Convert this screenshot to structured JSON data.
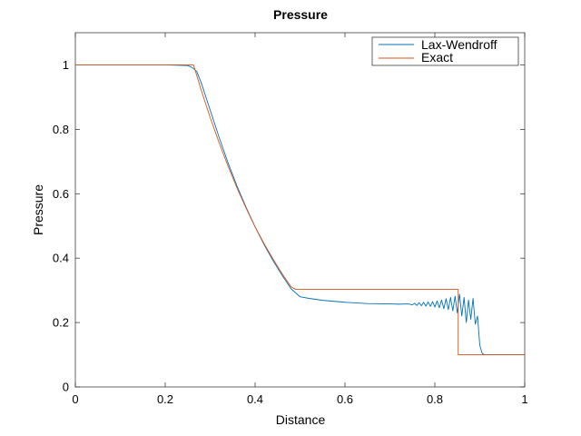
{
  "chart_data": {
    "type": "line",
    "title": "Pressure",
    "xlabel": "Distance",
    "ylabel": "Pressure",
    "xlim": [
      0,
      1
    ],
    "ylim": [
      0,
      1.1
    ],
    "xticks": [
      "0",
      "0.2",
      "0.4",
      "0.6",
      "0.8",
      "1"
    ],
    "yticks": [
      "0",
      "0.2",
      "0.4",
      "0.6",
      "0.8",
      "1"
    ],
    "grid": false,
    "legend_position": "top-right",
    "series": [
      {
        "name": "Lax-Wendroff",
        "color": "#0072BD",
        "x": [
          0,
          0.2,
          0.25,
          0.26,
          0.27,
          0.28,
          0.3,
          0.32,
          0.34,
          0.36,
          0.38,
          0.4,
          0.42,
          0.44,
          0.46,
          0.48,
          0.5,
          0.52,
          0.55,
          0.6,
          0.65,
          0.7,
          0.72,
          0.74,
          0.75,
          0.755,
          0.76,
          0.765,
          0.77,
          0.775,
          0.78,
          0.785,
          0.79,
          0.795,
          0.8,
          0.805,
          0.81,
          0.815,
          0.82,
          0.825,
          0.83,
          0.835,
          0.84,
          0.845,
          0.85,
          0.855,
          0.86,
          0.865,
          0.87,
          0.875,
          0.88,
          0.885,
          0.89,
          0.895,
          0.9,
          0.905,
          0.91,
          1.0
        ],
        "y": [
          1,
          1,
          0.998,
          0.992,
          0.98,
          0.945,
          0.86,
          0.775,
          0.695,
          0.623,
          0.558,
          0.497,
          0.442,
          0.392,
          0.347,
          0.305,
          0.28,
          0.275,
          0.269,
          0.263,
          0.259,
          0.258,
          0.257,
          0.258,
          0.255,
          0.26,
          0.253,
          0.262,
          0.252,
          0.263,
          0.251,
          0.264,
          0.25,
          0.265,
          0.248,
          0.267,
          0.246,
          0.27,
          0.243,
          0.274,
          0.24,
          0.278,
          0.236,
          0.282,
          0.23,
          0.288,
          0.22,
          0.278,
          0.2,
          0.27,
          0.21,
          0.275,
          0.195,
          0.22,
          0.13,
          0.105,
          0.1,
          0.1
        ]
      },
      {
        "name": "Exact",
        "color": "#D95319",
        "x": [
          0,
          0.263,
          0.27,
          0.28,
          0.3,
          0.32,
          0.34,
          0.36,
          0.38,
          0.4,
          0.42,
          0.44,
          0.46,
          0.48,
          0.49,
          0.49,
          0.852,
          0.852,
          1.0
        ],
        "y": [
          1,
          1,
          0.968,
          0.922,
          0.837,
          0.758,
          0.685,
          0.617,
          0.555,
          0.497,
          0.445,
          0.397,
          0.352,
          0.311,
          0.303,
          0.303,
          0.303,
          0.1,
          0.1
        ]
      }
    ]
  }
}
